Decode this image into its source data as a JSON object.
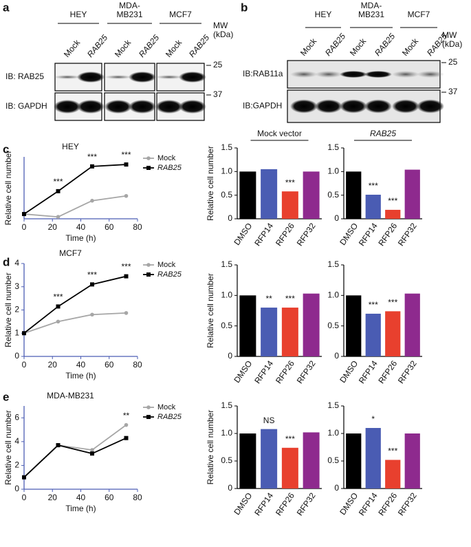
{
  "panels": [
    "a",
    "b",
    "c",
    "d",
    "e"
  ],
  "blots": [
    {
      "groups": [
        [
          "HEY"
        ],
        [
          "MDA-",
          "MB231"
        ],
        [
          "MCF7"
        ]
      ],
      "lanes": [
        "Mock",
        "RAB25",
        "Mock",
        "RAB25",
        "Mock",
        "RAB25"
      ],
      "mw_label": [
        "MW",
        "(kDa)"
      ],
      "rows": [
        {
          "label": "IB: RAB25",
          "marker": 25
        },
        {
          "label": "IB: GAPDH",
          "marker": 37
        }
      ]
    },
    {
      "groups": [
        [
          "HEY"
        ],
        [
          "MDA-",
          "MB231"
        ],
        [
          "MCF7"
        ]
      ],
      "lanes": [
        "Mock",
        "RAB25",
        "Mock",
        "RAB25",
        "Mock",
        "RAB25"
      ],
      "mw_label": [
        "MW",
        "(kDa)"
      ],
      "rows": [
        {
          "label": "IB:RAB11a",
          "marker": 25
        },
        {
          "label": "IB:GAPDH",
          "marker": 37
        }
      ]
    }
  ],
  "chart_data": [
    {
      "type": "line",
      "title": "HEY",
      "x_label": "Time (h)",
      "y_label": "Relative cell number",
      "x": [
        0,
        24,
        48,
        72
      ],
      "xlim": [
        0,
        80
      ],
      "xticks": [
        0,
        20,
        40,
        60,
        80
      ],
      "ylim": [
        0.5,
        7
      ],
      "series": [
        {
          "name": "Mock",
          "color": "#a6a6a6",
          "values": [
            1,
            0.7,
            2.4,
            2.9
          ]
        },
        {
          "name": "RAB25",
          "color": "#000000",
          "values": [
            1,
            3.4,
            6.0,
            6.2
          ]
        }
      ],
      "significance": [
        null,
        "***",
        "***",
        "***"
      ]
    },
    {
      "type": "bar",
      "title": "Mock vector",
      "y_label": "Relative cell number",
      "categories": [
        "DMSO",
        "RFP14",
        "RFP26",
        "RFP32"
      ],
      "colors": [
        "#000000",
        "#4a5cb3",
        "#e8402e",
        "#8e2a8e"
      ],
      "values": [
        1.0,
        1.05,
        0.58,
        1.0
      ],
      "significance": [
        null,
        null,
        "***",
        null
      ],
      "ylim": [
        0,
        1.5
      ],
      "yticks": [
        0,
        0.5,
        {
          "value": 1,
          "label": "1.0"
        },
        1.5
      ]
    },
    {
      "type": "bar",
      "title": "RAB25",
      "categories": [
        "DMSO",
        "RFP14",
        "RFP26",
        "RFP32"
      ],
      "colors": [
        "#000000",
        "#4a5cb3",
        "#e8402e",
        "#8e2a8e"
      ],
      "values": [
        1.0,
        0.51,
        0.19,
        1.04
      ],
      "significance": [
        null,
        "***",
        "***",
        null
      ],
      "ylim": [
        0,
        1.5
      ],
      "yticks": [
        0,
        0.5,
        {
          "value": 1,
          "label": "1.0"
        },
        1.5
      ]
    },
    {
      "type": "line",
      "title": "MCF7",
      "x_label": "Time (h)",
      "y_label": "Relative cell number",
      "x": [
        0,
        24,
        48,
        72
      ],
      "xlim": [
        0,
        80
      ],
      "xticks": [
        0,
        20,
        40,
        60,
        80
      ],
      "ylim": [
        0,
        4
      ],
      "yticks": [
        0,
        1,
        2,
        3,
        4
      ],
      "series": [
        {
          "name": "Mock",
          "color": "#a6a6a6",
          "values": [
            1,
            1.5,
            1.8,
            1.87
          ]
        },
        {
          "name": "RAB25",
          "color": "#000000",
          "values": [
            1,
            2.15,
            3.1,
            3.45
          ]
        }
      ],
      "significance": [
        null,
        "***",
        "***",
        "***"
      ]
    },
    {
      "type": "bar",
      "y_label": "Relative cell number",
      "categories": [
        "DMSO",
        "RFP14",
        "RFP26",
        "RFP32"
      ],
      "colors": [
        "#000000",
        "#4a5cb3",
        "#e8402e",
        "#8e2a8e"
      ],
      "values": [
        1.0,
        0.8,
        0.8,
        1.03
      ],
      "significance": [
        null,
        "**",
        "***",
        null
      ],
      "ylim": [
        0,
        1.5
      ],
      "yticks": [
        0,
        0.5,
        {
          "value": 1,
          "label": "1.0"
        },
        1.5
      ]
    },
    {
      "type": "bar",
      "categories": [
        "DMSO",
        "RFP14",
        "RFP26",
        "RFP32"
      ],
      "colors": [
        "#000000",
        "#4a5cb3",
        "#e8402e",
        "#8e2a8e"
      ],
      "values": [
        1.0,
        0.7,
        0.74,
        1.03
      ],
      "significance": [
        null,
        "***",
        "***",
        null
      ],
      "ylim": [
        0,
        1.5
      ],
      "yticks": [
        0,
        0.5,
        {
          "value": 1,
          "label": "1.0"
        },
        1.5
      ]
    },
    {
      "type": "line",
      "title": "MDA-MB231",
      "x_label": "Time (h)",
      "y_label": "Relative cell number",
      "x": [
        0,
        24,
        48,
        72
      ],
      "xlim": [
        0,
        80
      ],
      "xticks": [
        0,
        20,
        40,
        60,
        80
      ],
      "ylim": [
        0,
        7
      ],
      "yticks": [
        0,
        2,
        4,
        6
      ],
      "series": [
        {
          "name": "Mock",
          "color": "#a6a6a6",
          "values": [
            1,
            3.7,
            3.3,
            5.4
          ]
        },
        {
          "name": "RAB25",
          "color": "#000000",
          "values": [
            1,
            3.7,
            3.0,
            4.3
          ]
        }
      ],
      "significance": [
        null,
        null,
        null,
        "**"
      ]
    },
    {
      "type": "bar",
      "y_label": "Relative cell number",
      "categories": [
        "DMSO",
        "RFP14",
        "RFP26",
        "RFP32"
      ],
      "colors": [
        "#000000",
        "#4a5cb3",
        "#e8402e",
        "#8e2a8e"
      ],
      "values": [
        1.0,
        1.08,
        0.74,
        1.02
      ],
      "significance": [
        null,
        "NS",
        "***",
        null
      ],
      "ylim": [
        0,
        1.5
      ],
      "yticks": [
        0,
        0.5,
        {
          "value": 1,
          "label": "1.0"
        },
        1.5
      ]
    },
    {
      "type": "bar",
      "categories": [
        "DMSO",
        "RFP14",
        "RFP26",
        "RFP32"
      ],
      "colors": [
        "#000000",
        "#4a5cb3",
        "#e8402e",
        "#8e2a8e"
      ],
      "values": [
        1.0,
        1.1,
        0.52,
        1.0
      ],
      "significance": [
        null,
        "*",
        "***",
        null
      ],
      "ylim": [
        0,
        1.5
      ],
      "yticks": [
        0,
        0.5,
        {
          "value": 1,
          "label": "1.0"
        },
        1.5
      ]
    }
  ]
}
